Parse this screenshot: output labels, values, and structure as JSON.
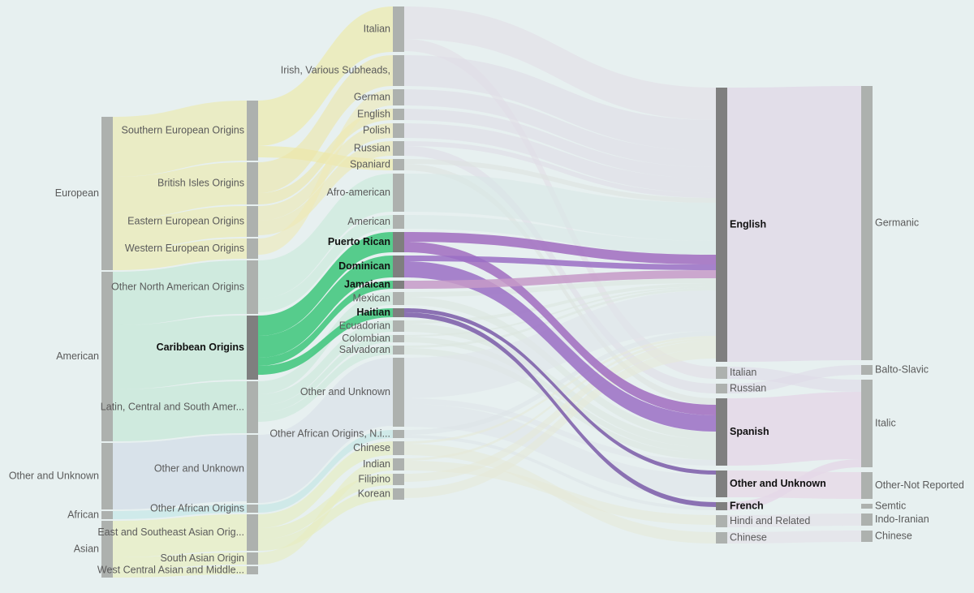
{
  "chart_data": {
    "type": "sankey",
    "nodes": [
      {
        "name": "European",
        "column": 0,
        "color": "#ece9a8"
      },
      {
        "name": "American",
        "column": 0,
        "color": "#bfe6d2"
      },
      {
        "name": "Other and Unknown",
        "column": 0,
        "color": "#cfd9e6"
      },
      {
        "name": "African",
        "column": 0,
        "color": "#bfe6e6"
      },
      {
        "name": "Asian",
        "column": 0,
        "color": "#e9eeb8"
      },
      {
        "name": "Southern European Origins",
        "column": 1,
        "color": "#efe9a0"
      },
      {
        "name": "British Isles Origins",
        "column": 1,
        "color": "#ede6a6"
      },
      {
        "name": "Eastern European Origins",
        "column": 1,
        "color": "#ece8b0"
      },
      {
        "name": "Western European Origins",
        "column": 1,
        "color": "#eee9b5"
      },
      {
        "name": "Other North American Origins",
        "column": 1,
        "color": "#c8ead9"
      },
      {
        "name": "Caribbean Origins",
        "column": 1,
        "color": "#3cc67a",
        "highlight": true
      },
      {
        "name": "Latin, Central and South Amer...",
        "column": 1,
        "color": "#c9e8d8"
      },
      {
        "name": "Other and Unknown",
        "column": 1,
        "color": "#d9dfe8"
      },
      {
        "name": "Other African Origins",
        "column": 1,
        "color": "#bfe5e3"
      },
      {
        "name": "East and Southeast Asian Orig...",
        "column": 1,
        "color": "#e6ecbc"
      },
      {
        "name": "South Asian Origin",
        "column": 1,
        "color": "#e8ecc0"
      },
      {
        "name": "West Central Asian and Middle...",
        "column": 1,
        "color": "#e8ecc8"
      },
      {
        "name": "Italian",
        "column": 2,
        "color": "#e2dde6"
      },
      {
        "name": "Irish, Various Subheads,",
        "column": 2,
        "color": "#e0dce6"
      },
      {
        "name": "German",
        "column": 2,
        "color": "#e0dce6"
      },
      {
        "name": "English",
        "column": 2,
        "color": "#e0dce6"
      },
      {
        "name": "Polish",
        "column": 2,
        "color": "#e0dce6"
      },
      {
        "name": "Russian",
        "column": 2,
        "color": "#e0dce6"
      },
      {
        "name": "Spaniard",
        "column": 2,
        "color": "#dde2e0"
      },
      {
        "name": "Afro-american",
        "column": 2,
        "color": "#d8e8e6"
      },
      {
        "name": "American",
        "column": 2,
        "color": "#d8e8e6"
      },
      {
        "name": "Puerto Rican",
        "column": 2,
        "color": "#a06cc0",
        "highlight": true
      },
      {
        "name": "Dominican",
        "column": 2,
        "color": "#9a6fc4",
        "highlight": true
      },
      {
        "name": "Jamaican",
        "column": 2,
        "color": "#c69ac8",
        "highlight": true
      },
      {
        "name": "Mexican",
        "column": 2,
        "color": "#dce6e0"
      },
      {
        "name": "Haitian",
        "column": 2,
        "color": "#7a5aa8",
        "highlight": true
      },
      {
        "name": "Ecuadorian",
        "column": 2,
        "color": "#dce6e0"
      },
      {
        "name": "Colombian",
        "column": 2,
        "color": "#dce6e0"
      },
      {
        "name": "Salvadoran",
        "column": 2,
        "color": "#dce6e0"
      },
      {
        "name": "Other and Unknown",
        "column": 2,
        "color": "#dfe5ea"
      },
      {
        "name": "Other African Origins, N.i...",
        "column": 2,
        "color": "#dde5e8"
      },
      {
        "name": "Chinese",
        "column": 2,
        "color": "#e6ead8"
      },
      {
        "name": "Indian",
        "column": 2,
        "color": "#e6ead8"
      },
      {
        "name": "Filipino",
        "column": 2,
        "color": "#e6ead8"
      },
      {
        "name": "Korean",
        "column": 2,
        "color": "#e6ead8"
      },
      {
        "name": "English",
        "column": 3,
        "color": "#e0dbe8",
        "highlight": true
      },
      {
        "name": "Italian",
        "column": 3,
        "color": "#e0dbe8"
      },
      {
        "name": "Russian",
        "column": 3,
        "color": "#e0dbe8"
      },
      {
        "name": "Spanish",
        "column": 3,
        "color": "#e4d8e8",
        "highlight": true
      },
      {
        "name": "Other and Unknown",
        "column": 3,
        "color": "#e6dbe8",
        "highlight": true
      },
      {
        "name": "French",
        "column": 3,
        "color": "#e4d8e8",
        "highlight": true
      },
      {
        "name": "Hindi and Related",
        "column": 3,
        "color": "#e4e0e8"
      },
      {
        "name": "Chinese",
        "column": 3,
        "color": "#e4e0e8"
      },
      {
        "name": "Germanic",
        "column": 4,
        "color": "#e0dbe8"
      },
      {
        "name": "Balto-Slavic",
        "column": 4,
        "color": "#e0dbe8"
      },
      {
        "name": "Italic",
        "column": 4,
        "color": "#e0dbe8"
      },
      {
        "name": "Other-Not Reported",
        "column": 4,
        "color": "#e0dbe8"
      },
      {
        "name": "Semtic",
        "column": 4,
        "color": "#e0dbe8"
      },
      {
        "name": "Indo-Iranian",
        "column": 4,
        "color": "#e0dbe8"
      },
      {
        "name": "Chinese",
        "column": 4,
        "color": "#e0dbe8"
      }
    ],
    "links": [
      {
        "source": 0,
        "target": 5,
        "value": 74
      },
      {
        "source": 0,
        "target": 6,
        "value": 52
      },
      {
        "source": 0,
        "target": 7,
        "value": 38
      },
      {
        "source": 0,
        "target": 8,
        "value": 25
      },
      {
        "source": 1,
        "target": 9,
        "value": 66
      },
      {
        "source": 1,
        "target": 10,
        "value": 79
      },
      {
        "source": 1,
        "target": 11,
        "value": 64
      },
      {
        "source": 2,
        "target": 12,
        "value": 82
      },
      {
        "source": 3,
        "target": 13,
        "value": 10
      },
      {
        "source": 4,
        "target": 14,
        "value": 45
      },
      {
        "source": 4,
        "target": 15,
        "value": 15
      },
      {
        "source": 4,
        "target": 16,
        "value": 10
      },
      {
        "source": 5,
        "target": 17,
        "value": 56
      },
      {
        "source": 5,
        "target": 23,
        "value": 14
      },
      {
        "source": 6,
        "target": 18,
        "value": 38
      },
      {
        "source": 6,
        "target": 20,
        "value": 14
      },
      {
        "source": 7,
        "target": 21,
        "value": 18
      },
      {
        "source": 7,
        "target": 22,
        "value": 18
      },
      {
        "source": 8,
        "target": 19,
        "value": 20
      },
      {
        "source": 9,
        "target": 24,
        "value": 47
      },
      {
        "source": 9,
        "target": 25,
        "value": 17
      },
      {
        "source": 10,
        "target": 26,
        "value": 25
      },
      {
        "source": 10,
        "target": 27,
        "value": 27
      },
      {
        "source": 10,
        "target": 28,
        "value": 10
      },
      {
        "source": 10,
        "target": 30,
        "value": 11
      },
      {
        "source": 11,
        "target": 29,
        "value": 16
      },
      {
        "source": 11,
        "target": 31,
        "value": 14
      },
      {
        "source": 11,
        "target": 32,
        "value": 9
      },
      {
        "source": 11,
        "target": 33,
        "value": 11
      },
      {
        "source": 12,
        "target": 34,
        "value": 84
      },
      {
        "source": 13,
        "target": 35,
        "value": 10
      },
      {
        "source": 14,
        "target": 36,
        "value": 17
      },
      {
        "source": 14,
        "target": 38,
        "value": 14
      },
      {
        "source": 14,
        "target": 39,
        "value": 14
      },
      {
        "source": 15,
        "target": 37,
        "value": 15
      },
      {
        "source": 17,
        "target": 40,
        "value": 40
      },
      {
        "source": 17,
        "target": 41,
        "value": 15
      },
      {
        "source": 18,
        "target": 40,
        "value": 38
      },
      {
        "source": 19,
        "target": 40,
        "value": 20
      },
      {
        "source": 20,
        "target": 40,
        "value": 14
      },
      {
        "source": 21,
        "target": 40,
        "value": 18
      },
      {
        "source": 22,
        "target": 40,
        "value": 6
      },
      {
        "source": 22,
        "target": 42,
        "value": 12
      },
      {
        "source": 23,
        "target": 40,
        "value": 6
      },
      {
        "source": 23,
        "target": 43,
        "value": 8
      },
      {
        "source": 24,
        "target": 40,
        "value": 47
      },
      {
        "source": 25,
        "target": 40,
        "value": 17
      },
      {
        "source": 26,
        "target": 40,
        "value": 12
      },
      {
        "source": 26,
        "target": 43,
        "value": 13
      },
      {
        "source": 27,
        "target": 40,
        "value": 7
      },
      {
        "source": 27,
        "target": 43,
        "value": 20
      },
      {
        "source": 28,
        "target": 40,
        "value": 10
      },
      {
        "source": 29,
        "target": 40,
        "value": 6
      },
      {
        "source": 29,
        "target": 43,
        "value": 10
      },
      {
        "source": 30,
        "target": 44,
        "value": 5
      },
      {
        "source": 30,
        "target": 45,
        "value": 6
      },
      {
        "source": 31,
        "target": 40,
        "value": 4
      },
      {
        "source": 31,
        "target": 43,
        "value": 10
      },
      {
        "source": 32,
        "target": 40,
        "value": 2
      },
      {
        "source": 32,
        "target": 43,
        "value": 7
      },
      {
        "source": 33,
        "target": 40,
        "value": 3
      },
      {
        "source": 33,
        "target": 43,
        "value": 8
      },
      {
        "source": 34,
        "target": 40,
        "value": 50
      },
      {
        "source": 34,
        "target": 43,
        "value": 7
      },
      {
        "source": 34,
        "target": 44,
        "value": 28
      },
      {
        "source": 35,
        "target": 40,
        "value": 6
      },
      {
        "source": 35,
        "target": 45,
        "value": 4
      },
      {
        "source": 36,
        "target": 40,
        "value": 3
      },
      {
        "source": 36,
        "target": 47,
        "value": 14
      },
      {
        "source": 37,
        "target": 40,
        "value": 3
      },
      {
        "source": 37,
        "target": 46,
        "value": 12
      },
      {
        "source": 38,
        "target": 40,
        "value": 10
      },
      {
        "source": 39,
        "target": 40,
        "value": 12
      },
      {
        "source": 40,
        "target": 48,
        "value": 338
      },
      {
        "source": 41,
        "target": 50,
        "value": 15
      },
      {
        "source": 42,
        "target": 49,
        "value": 12
      },
      {
        "source": 43,
        "target": 50,
        "value": 83
      },
      {
        "source": 44,
        "target": 51,
        "value": 33
      },
      {
        "source": 45,
        "target": 50,
        "value": 10
      },
      {
        "source": 46,
        "target": 53,
        "value": 15
      },
      {
        "source": 47,
        "target": 54,
        "value": 14
      }
    ]
  }
}
